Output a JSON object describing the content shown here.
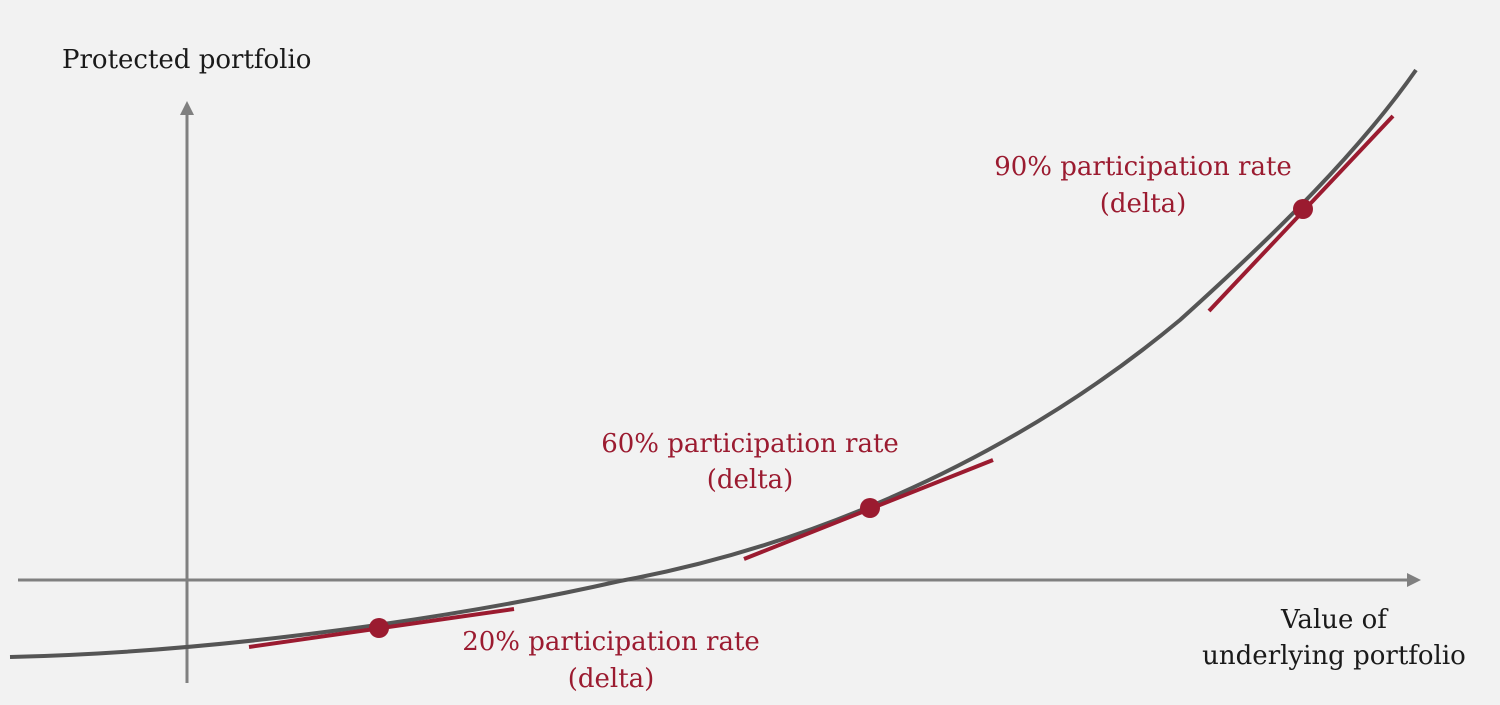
{
  "colors": {
    "background": "#f2f2f2",
    "axis": "#808080",
    "curve": "#555555",
    "accent": "#9b1b30",
    "text": "#1a1a1a"
  },
  "axes": {
    "y_label": "Protected portfolio",
    "x_label_line1": "Value of",
    "x_label_line2": "underlying portfolio"
  },
  "annotations": [
    {
      "rate": "20% participation rate",
      "sub": "(delta)",
      "delta": 0.2
    },
    {
      "rate": "60% participation rate",
      "sub": "(delta)",
      "delta": 0.6
    },
    {
      "rate": "90% participation rate",
      "sub": "(delta)",
      "delta": 0.9
    }
  ]
}
